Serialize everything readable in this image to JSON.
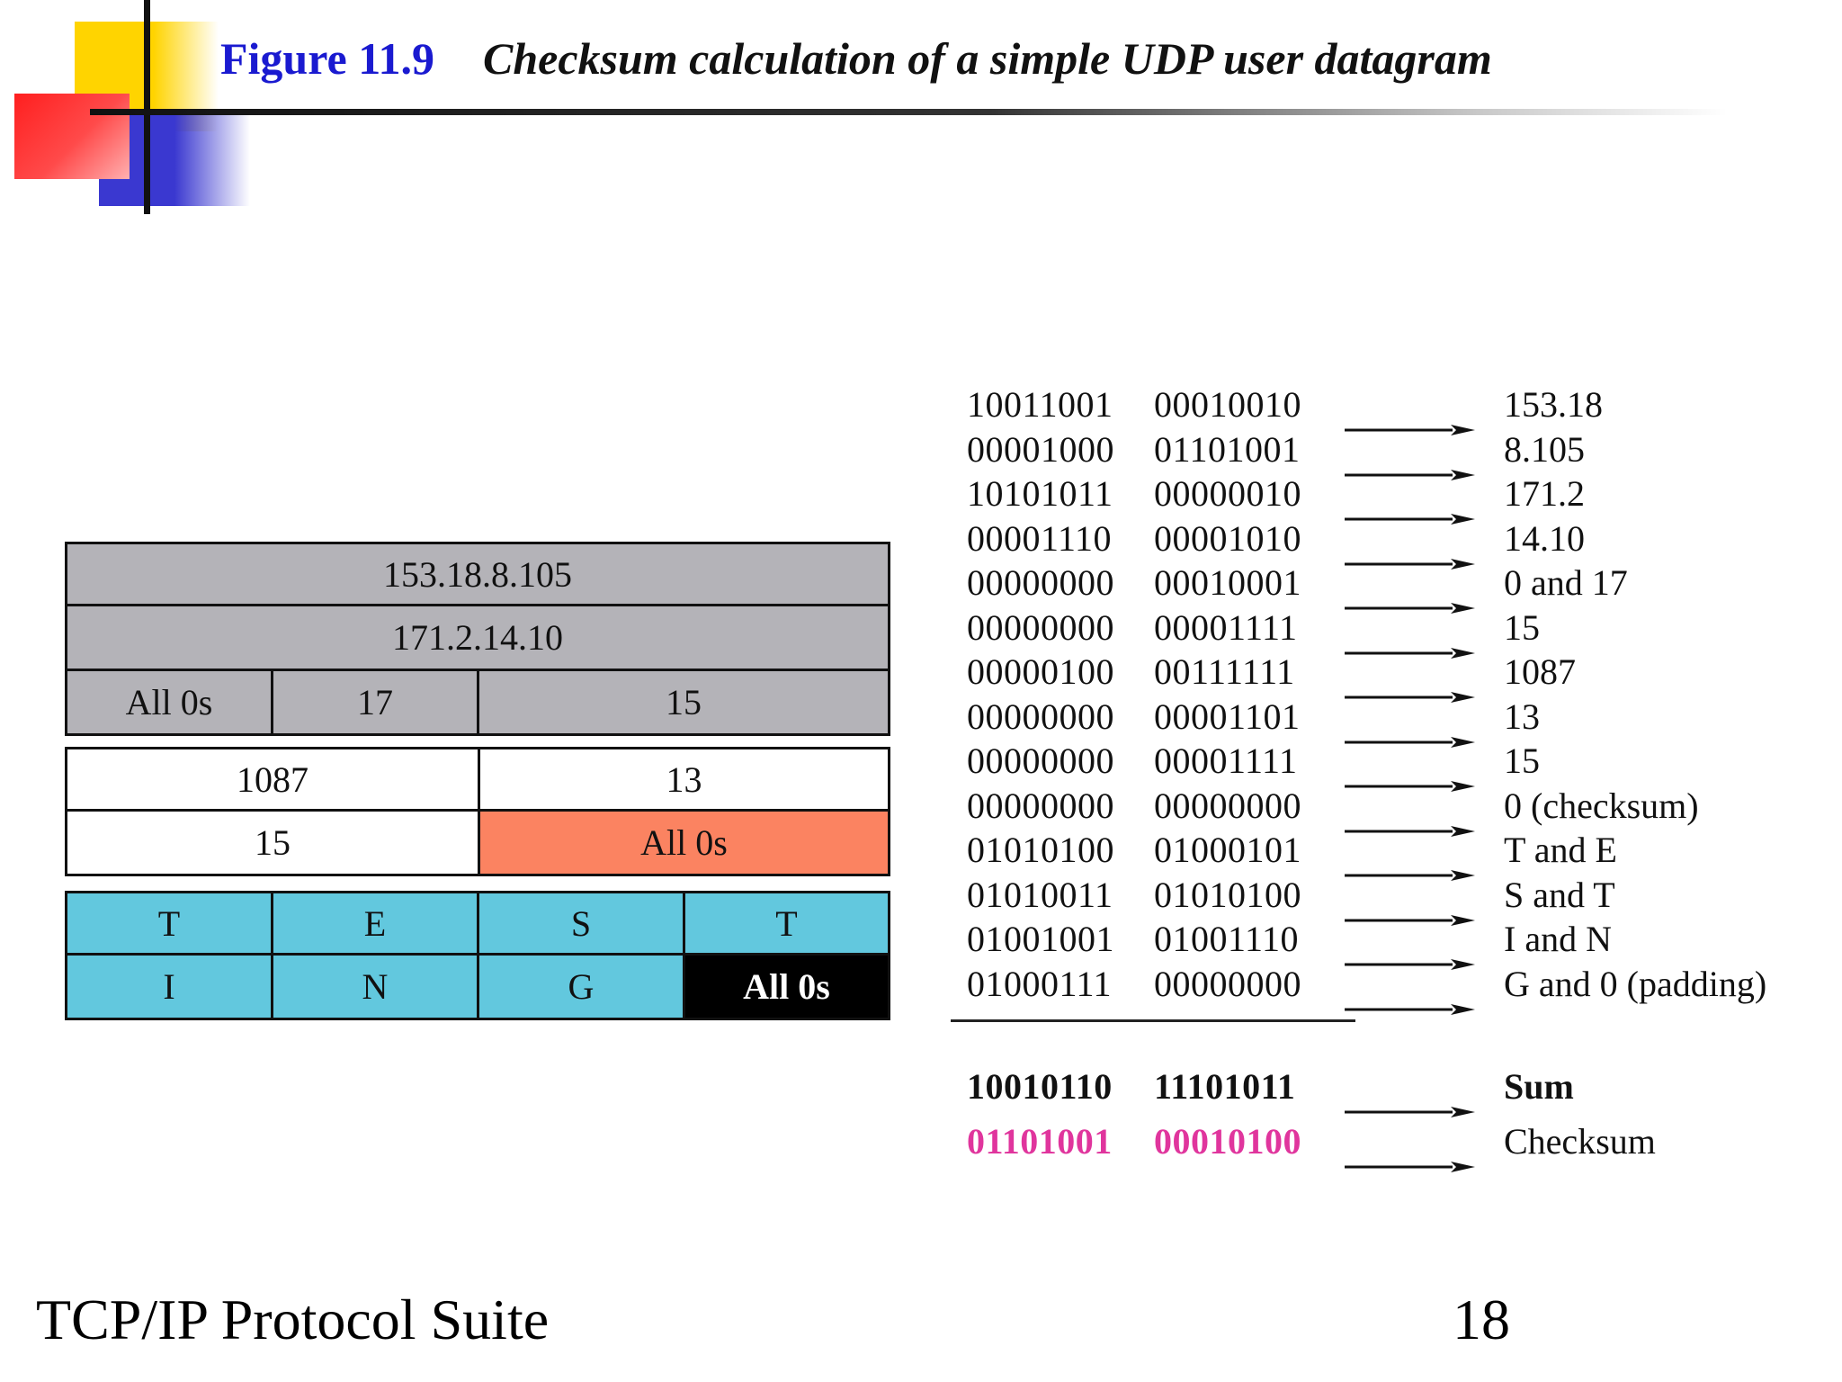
{
  "header": {
    "figure_number": "Figure 11.9",
    "caption": "Checksum calculation of a simple UDP user datagram"
  },
  "datagram": {
    "source_ip": "153.18.8.105",
    "dest_ip": "171.2.14.10",
    "zeros": "All 0s",
    "protocol": "17",
    "udp_length": "15",
    "source_port": "1087",
    "dest_port": "13",
    "length": "15",
    "checksum": "All 0s",
    "data_row1": [
      "T",
      "E",
      "S",
      "T"
    ],
    "data_row2": [
      "I",
      "N",
      "G",
      "All 0s"
    ]
  },
  "calculation": {
    "rows": [
      {
        "b1": "10011001",
        "b2": "00010010",
        "v": "153.18"
      },
      {
        "b1": "00001000",
        "b2": "01101001",
        "v": "8.105"
      },
      {
        "b1": "10101011",
        "b2": "00000010",
        "v": "171.2"
      },
      {
        "b1": "00001110",
        "b2": "00001010",
        "v": "14.10"
      },
      {
        "b1": "00000000",
        "b2": "00010001",
        "v": "0 and 17"
      },
      {
        "b1": "00000000",
        "b2": "00001111",
        "v": "15"
      },
      {
        "b1": "00000100",
        "b2": "00111111",
        "v": "1087"
      },
      {
        "b1": "00000000",
        "b2": "00001101",
        "v": "13"
      },
      {
        "b1": "00000000",
        "b2": "00001111",
        "v": "15"
      },
      {
        "b1": "00000000",
        "b2": "00000000",
        "v": "0 (checksum)"
      },
      {
        "b1": "01010100",
        "b2": "01000101",
        "v": "T and E"
      },
      {
        "b1": "01010011",
        "b2": "01010100",
        "v": "S and T"
      },
      {
        "b1": "01001001",
        "b2": "01001110",
        "v": "I and N"
      },
      {
        "b1": "01000111",
        "b2": "00000000",
        "v": "G and 0 (padding)"
      }
    ],
    "sum": {
      "b1": "10010110",
      "b2": "11101011",
      "v": "Sum"
    },
    "checksum": {
      "b1": "01101001",
      "b2": "00010100",
      "v": "Checksum"
    }
  },
  "footer": {
    "suite": "TCP/IP Protocol Suite",
    "page": "18"
  },
  "colors": {
    "header_gray": "#b4b3b8",
    "checksum_field": "#fb8361",
    "data_cells": "#62c8de",
    "checksum_text": "#e0359d",
    "figure_number": "#1a1ad0"
  }
}
